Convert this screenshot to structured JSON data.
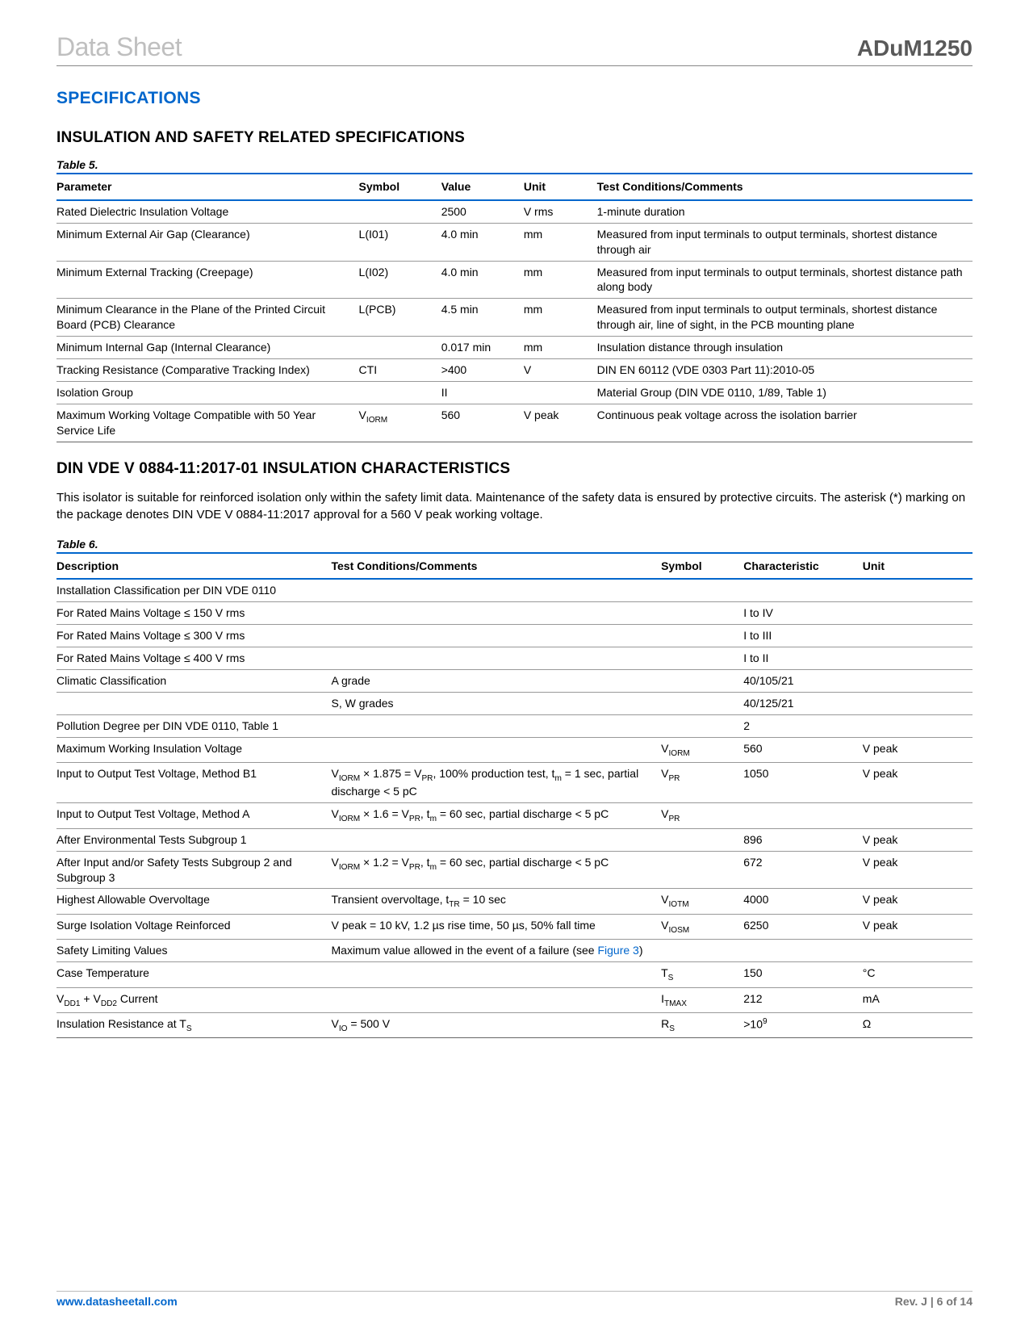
{
  "header": {
    "left": "Data Sheet",
    "right": "ADuM1250"
  },
  "section_title": "SPECIFICATIONS",
  "subsection1_title": "INSULATION AND SAFETY RELATED SPECIFICATIONS",
  "table5": {
    "caption": "Table 5.",
    "columns": [
      "Parameter",
      "Symbol",
      "Value",
      "Unit",
      "Test Conditions/Comments"
    ],
    "col_widths": [
      "33%",
      "9%",
      "9%",
      "8%",
      "41%"
    ],
    "rows": [
      {
        "param": "Rated Dielectric Insulation Voltage",
        "sym": "",
        "val": "2500",
        "unit": "V rms",
        "cond": "1-minute duration"
      },
      {
        "param": "Minimum External Air Gap (Clearance)",
        "sym": "L(I01)",
        "val": "4.0 min",
        "unit": "mm",
        "cond": "Measured from input terminals to output terminals, shortest distance through air"
      },
      {
        "param": "Minimum External Tracking (Creepage)",
        "sym": "L(I02)",
        "val": "4.0 min",
        "unit": "mm",
        "cond": "Measured from input terminals to output terminals, shortest distance path along body"
      },
      {
        "param": "Minimum Clearance in the Plane of the Printed Circuit Board (PCB) Clearance",
        "sym": "L(PCB)",
        "val": "4.5 min",
        "unit": "mm",
        "cond": "Measured from input terminals to output terminals, shortest distance through air, line of sight, in the PCB mounting plane"
      },
      {
        "param": "Minimum Internal Gap (Internal Clearance)",
        "sym": "",
        "val": "0.017 min",
        "unit": "mm",
        "cond": "Insulation distance through insulation"
      },
      {
        "param": "Tracking Resistance (Comparative Tracking Index)",
        "sym": "CTI",
        "val": ">400",
        "unit": "V",
        "cond": "DIN EN 60112 (VDE 0303 Part 11):2010-05"
      },
      {
        "param": "Isolation Group",
        "sym": "",
        "val": "II",
        "unit": "",
        "cond": "Material Group (DIN VDE 0110, 1/89, Table 1)"
      },
      {
        "param": "Maximum Working Voltage Compatible with 50 Year Service Life",
        "sym_html": "V<sub>IORM</sub>",
        "val": "560",
        "unit": "V peak",
        "cond": "Continuous peak voltage across the isolation barrier"
      }
    ]
  },
  "subsection2_title": "DIN VDE V 0884-11:2017-01 INSULATION CHARACTERISTICS",
  "body_text": "This isolator is suitable for reinforced isolation only within the safety limit data. Maintenance of the safety data is ensured by protective circuits. The asterisk (*) marking on the package denotes DIN VDE V 0884-11:2017 approval for a 560 V peak working voltage.",
  "table6": {
    "caption": "Table 6.",
    "columns": [
      "Description",
      "Test Conditions/Comments",
      "Symbol",
      "Characteristic",
      "Unit"
    ],
    "col_widths": [
      "30%",
      "36%",
      "9%",
      "13%",
      "12%"
    ],
    "rows": [
      {
        "desc": "Installation Classification per DIN VDE 0110",
        "cond": "",
        "sym": "",
        "char": "",
        "unit": ""
      },
      {
        "desc": "For Rated Mains Voltage ≤ 150 V rms",
        "indent": true,
        "cond": "",
        "sym": "",
        "char": "I to IV",
        "unit": ""
      },
      {
        "desc": "For Rated Mains Voltage ≤ 300 V rms",
        "indent": true,
        "cond": "",
        "sym": "",
        "char": "I to III",
        "unit": ""
      },
      {
        "desc": "For Rated Mains Voltage ≤ 400 V rms",
        "indent": true,
        "cond": "",
        "sym": "",
        "char": "I to II",
        "unit": ""
      },
      {
        "desc": "Climatic Classification",
        "cond": "A grade",
        "sym": "",
        "char": "40/105/21",
        "unit": ""
      },
      {
        "desc": "",
        "cond": "S, W grades",
        "sym": "",
        "char": "40/125/21",
        "unit": ""
      },
      {
        "desc": "Pollution Degree per DIN VDE 0110, Table 1",
        "cond": "",
        "sym": "",
        "char": "2",
        "unit": ""
      },
      {
        "desc": "Maximum Working Insulation Voltage",
        "cond": "",
        "sym_html": "V<sub>IORM</sub>",
        "char": "560",
        "unit": "V peak"
      },
      {
        "desc": "Input to Output Test Voltage, Method B1",
        "cond_html": "V<sub>IORM</sub> × 1.875 = V<sub>PR</sub>, 100% production test, t<sub>m</sub> = 1 sec, partial discharge < 5 pC",
        "sym_html": "V<sub>PR</sub>",
        "char": "1050",
        "unit": "V peak"
      },
      {
        "desc": "Input to Output Test Voltage, Method A",
        "cond_html": "V<sub>IORM</sub> × 1.6 = V<sub>PR</sub>, t<sub>m</sub> = 60 sec, partial discharge < 5 pC",
        "sym_html": "V<sub>PR</sub>",
        "char": "",
        "unit": ""
      },
      {
        "desc": "After Environmental Tests Subgroup 1",
        "indent": true,
        "cond": "",
        "sym": "",
        "char": "896",
        "unit": "V peak"
      },
      {
        "desc": "After Input and/or Safety Tests Subgroup 2 and Subgroup 3",
        "indent": true,
        "cond_html": "V<sub>IORM</sub> × 1.2 = V<sub>PR</sub>, t<sub>m</sub> = 60 sec, partial discharge < 5 pC",
        "sym": "",
        "char": "672",
        "unit": "V peak"
      },
      {
        "desc": "Highest Allowable Overvoltage",
        "cond_html": "Transient overvoltage, t<sub>TR</sub> = 10 sec",
        "sym_html": "V<sub>IOTM</sub>",
        "char": "4000",
        "unit": "V peak"
      },
      {
        "desc": "Surge Isolation Voltage Reinforced",
        "cond": "V peak = 10 kV, 1.2 µs rise time, 50 µs, 50% fall time",
        "sym_html": "V<sub>IOSM</sub>",
        "char": "6250",
        "unit": "V peak"
      },
      {
        "desc": "Safety Limiting Values",
        "cond_html": "Maximum value allowed in the event of a failure (see <span class='link'>Figure 3</span>)",
        "sym": "",
        "char": "",
        "unit": ""
      },
      {
        "desc": "Case Temperature",
        "indent": true,
        "cond": "",
        "sym_html": "T<sub>S</sub>",
        "char": "150",
        "unit": "°C"
      },
      {
        "desc_html": "V<sub>DD1</sub> + V<sub>DD2</sub> Current",
        "indent": true,
        "cond": "",
        "sym_html": "I<sub>TMAX</sub>",
        "char": "212",
        "unit": "mA"
      },
      {
        "desc_html": "Insulation Resistance at T<sub>S</sub>",
        "cond_html": "V<sub>IO</sub> = 500 V",
        "sym_html": "R<sub>S</sub>",
        "char_html": ">10<sup>9</sup>",
        "unit": "Ω"
      }
    ]
  },
  "footer": {
    "left": "www.datasheetall.com",
    "right": "Rev. J | 6 of 14"
  },
  "colors": {
    "accent": "#0066cc",
    "header_gray": "#bfbfbf",
    "product_gray": "#595959",
    "footer_gray": "#777777"
  }
}
